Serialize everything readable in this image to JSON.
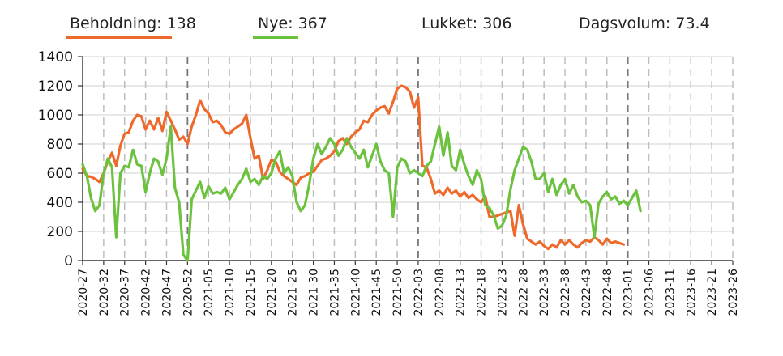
{
  "chart_data": {
    "type": "line",
    "legend": [
      {
        "label": "Beholdning: 138",
        "color": "#ee6a2c"
      },
      {
        "label": "Nye: 367",
        "color": "#6cc23f"
      },
      {
        "label": "Lukket: 306",
        "color": null
      },
      {
        "label": "Dagsvolum: 73.4",
        "color": null
      }
    ],
    "ylim": [
      0,
      1400
    ],
    "yticks": [
      "0",
      "200",
      "400",
      "600",
      "800",
      "1000",
      "1200",
      "1400"
    ],
    "x_tick_labels": [
      "2020-27",
      "2020-32",
      "2020-37",
      "2020-42",
      "2020-47",
      "2020-52",
      "2021-05",
      "2021-10",
      "2021-15",
      "2021-20",
      "2021-25",
      "2021-30",
      "2021-35",
      "2021-40",
      "2021-45",
      "2021-50",
      "2022-03",
      "2022-08",
      "2022-13",
      "2022-18",
      "2022-23",
      "2022-28",
      "2022-33",
      "2022-38",
      "2022-43",
      "2022-48",
      "2023-01",
      "2023-06",
      "2023-11",
      "2023-16",
      "2023-21",
      "2023-26"
    ],
    "year_boundary_weeks": [
      "2020-52",
      "2022-03",
      "2023-01"
    ],
    "grid": true,
    "series": [
      {
        "name": "Beholdning",
        "color": "#ee6a2c",
        "points": [
          [
            0,
            630
          ],
          [
            1,
            580
          ],
          [
            2,
            575
          ],
          [
            3,
            560
          ],
          [
            4,
            540
          ],
          [
            5,
            600
          ],
          [
            6,
            680
          ],
          [
            7,
            740
          ],
          [
            8,
            650
          ],
          [
            9,
            790
          ],
          [
            10,
            870
          ],
          [
            11,
            880
          ],
          [
            12,
            960
          ],
          [
            13,
            1000
          ],
          [
            14,
            990
          ],
          [
            15,
            900
          ],
          [
            16,
            960
          ],
          [
            17,
            900
          ],
          [
            18,
            980
          ],
          [
            19,
            890
          ],
          [
            20,
            1020
          ],
          [
            21,
            960
          ],
          [
            22,
            900
          ],
          [
            23,
            830
          ],
          [
            24,
            850
          ],
          [
            25,
            800
          ],
          [
            26,
            920
          ],
          [
            27,
            1000
          ],
          [
            28,
            1100
          ],
          [
            29,
            1040
          ],
          [
            30,
            1010
          ],
          [
            31,
            950
          ],
          [
            32,
            960
          ],
          [
            33,
            930
          ],
          [
            34,
            880
          ],
          [
            35,
            870
          ],
          [
            36,
            900
          ],
          [
            37,
            920
          ],
          [
            38,
            940
          ],
          [
            39,
            1000
          ],
          [
            40,
            840
          ],
          [
            41,
            700
          ],
          [
            42,
            720
          ],
          [
            43,
            560
          ],
          [
            44,
            620
          ],
          [
            45,
            690
          ],
          [
            46,
            680
          ],
          [
            47,
            610
          ],
          [
            48,
            580
          ],
          [
            49,
            560
          ],
          [
            50,
            540
          ],
          [
            51,
            520
          ],
          [
            52,
            570
          ],
          [
            53,
            580
          ],
          [
            54,
            600
          ],
          [
            55,
            610
          ],
          [
            56,
            650
          ],
          [
            57,
            690
          ],
          [
            58,
            700
          ],
          [
            59,
            720
          ],
          [
            60,
            750
          ],
          [
            61,
            820
          ],
          [
            62,
            840
          ],
          [
            63,
            800
          ],
          [
            64,
            850
          ],
          [
            65,
            880
          ],
          [
            66,
            900
          ],
          [
            67,
            960
          ],
          [
            68,
            950
          ],
          [
            69,
            1000
          ],
          [
            70,
            1030
          ],
          [
            71,
            1050
          ],
          [
            72,
            1060
          ],
          [
            73,
            1010
          ],
          [
            74,
            1090
          ],
          [
            75,
            1180
          ],
          [
            76,
            1200
          ],
          [
            77,
            1190
          ],
          [
            78,
            1160
          ],
          [
            79,
            1050
          ],
          [
            80,
            1120
          ],
          [
            81,
            650
          ],
          [
            82,
            640
          ],
          [
            83,
            560
          ],
          [
            84,
            460
          ],
          [
            85,
            480
          ],
          [
            86,
            450
          ],
          [
            87,
            500
          ],
          [
            88,
            460
          ],
          [
            89,
            480
          ],
          [
            90,
            440
          ],
          [
            91,
            470
          ],
          [
            92,
            430
          ],
          [
            93,
            450
          ],
          [
            94,
            420
          ],
          [
            95,
            400
          ],
          [
            96,
            440
          ],
          [
            97,
            300
          ],
          [
            98,
            300
          ],
          [
            99,
            310
          ],
          [
            100,
            320
          ],
          [
            101,
            330
          ],
          [
            102,
            340
          ],
          [
            103,
            170
          ],
          [
            104,
            380
          ],
          [
            105,
            250
          ],
          [
            106,
            150
          ],
          [
            107,
            130
          ],
          [
            108,
            110
          ],
          [
            109,
            130
          ],
          [
            110,
            100
          ],
          [
            111,
            80
          ],
          [
            112,
            110
          ],
          [
            113,
            90
          ],
          [
            114,
            140
          ],
          [
            115,
            110
          ],
          [
            116,
            140
          ],
          [
            117,
            110
          ],
          [
            118,
            90
          ],
          [
            119,
            120
          ],
          [
            120,
            140
          ],
          [
            121,
            130
          ],
          [
            122,
            160
          ],
          [
            123,
            140
          ],
          [
            124,
            110
          ],
          [
            125,
            150
          ],
          [
            126,
            120
          ],
          [
            127,
            130
          ],
          [
            128,
            120
          ],
          [
            129,
            110
          ]
        ]
      },
      {
        "name": "Nye",
        "color": "#6cc23f",
        "points": [
          [
            0,
            660
          ],
          [
            1,
            580
          ],
          [
            2,
            430
          ],
          [
            3,
            340
          ],
          [
            4,
            380
          ],
          [
            5,
            600
          ],
          [
            6,
            700
          ],
          [
            7,
            640
          ],
          [
            8,
            160
          ],
          [
            9,
            600
          ],
          [
            10,
            650
          ],
          [
            11,
            640
          ],
          [
            12,
            760
          ],
          [
            13,
            660
          ],
          [
            14,
            650
          ],
          [
            15,
            470
          ],
          [
            16,
            600
          ],
          [
            17,
            700
          ],
          [
            18,
            680
          ],
          [
            19,
            590
          ],
          [
            20,
            700
          ],
          [
            21,
            920
          ],
          [
            22,
            500
          ],
          [
            23,
            400
          ],
          [
            24,
            40
          ],
          [
            25,
            0
          ],
          [
            26,
            420
          ],
          [
            27,
            480
          ],
          [
            28,
            540
          ],
          [
            29,
            430
          ],
          [
            30,
            510
          ],
          [
            31,
            460
          ],
          [
            32,
            470
          ],
          [
            33,
            460
          ],
          [
            34,
            500
          ],
          [
            35,
            420
          ],
          [
            36,
            470
          ],
          [
            37,
            520
          ],
          [
            38,
            560
          ],
          [
            39,
            630
          ],
          [
            40,
            540
          ],
          [
            41,
            560
          ],
          [
            42,
            520
          ],
          [
            43,
            580
          ],
          [
            44,
            560
          ],
          [
            45,
            600
          ],
          [
            46,
            700
          ],
          [
            47,
            750
          ],
          [
            48,
            600
          ],
          [
            49,
            640
          ],
          [
            50,
            580
          ],
          [
            51,
            400
          ],
          [
            52,
            340
          ],
          [
            53,
            380
          ],
          [
            54,
            520
          ],
          [
            55,
            700
          ],
          [
            56,
            800
          ],
          [
            57,
            730
          ],
          [
            58,
            780
          ],
          [
            59,
            840
          ],
          [
            60,
            800
          ],
          [
            61,
            720
          ],
          [
            62,
            760
          ],
          [
            63,
            840
          ],
          [
            64,
            780
          ],
          [
            65,
            740
          ],
          [
            66,
            700
          ],
          [
            67,
            760
          ],
          [
            68,
            640
          ],
          [
            69,
            720
          ],
          [
            70,
            800
          ],
          [
            71,
            680
          ],
          [
            72,
            620
          ],
          [
            73,
            600
          ],
          [
            74,
            300
          ],
          [
            75,
            640
          ],
          [
            76,
            700
          ],
          [
            77,
            680
          ],
          [
            78,
            600
          ],
          [
            79,
            620
          ],
          [
            80,
            600
          ],
          [
            81,
            580
          ],
          [
            82,
            650
          ],
          [
            83,
            680
          ],
          [
            84,
            800
          ],
          [
            85,
            920
          ],
          [
            86,
            720
          ],
          [
            87,
            880
          ],
          [
            88,
            650
          ],
          [
            89,
            620
          ],
          [
            90,
            760
          ],
          [
            91,
            660
          ],
          [
            92,
            580
          ],
          [
            93,
            520
          ],
          [
            94,
            620
          ],
          [
            95,
            560
          ],
          [
            96,
            380
          ],
          [
            97,
            360
          ],
          [
            98,
            310
          ],
          [
            99,
            220
          ],
          [
            100,
            240
          ],
          [
            101,
            310
          ],
          [
            102,
            490
          ],
          [
            103,
            620
          ],
          [
            104,
            700
          ],
          [
            105,
            780
          ],
          [
            106,
            760
          ],
          [
            107,
            680
          ],
          [
            108,
            560
          ],
          [
            109,
            560
          ],
          [
            110,
            600
          ],
          [
            111,
            470
          ],
          [
            112,
            560
          ],
          [
            113,
            450
          ],
          [
            114,
            520
          ],
          [
            115,
            560
          ],
          [
            116,
            460
          ],
          [
            117,
            520
          ],
          [
            118,
            440
          ],
          [
            119,
            400
          ],
          [
            120,
            410
          ],
          [
            121,
            380
          ],
          [
            122,
            160
          ],
          [
            123,
            390
          ],
          [
            124,
            440
          ],
          [
            125,
            470
          ],
          [
            126,
            420
          ],
          [
            127,
            440
          ],
          [
            128,
            390
          ],
          [
            129,
            410
          ],
          [
            130,
            380
          ],
          [
            131,
            430
          ],
          [
            132,
            480
          ],
          [
            133,
            340
          ]
        ]
      }
    ]
  }
}
